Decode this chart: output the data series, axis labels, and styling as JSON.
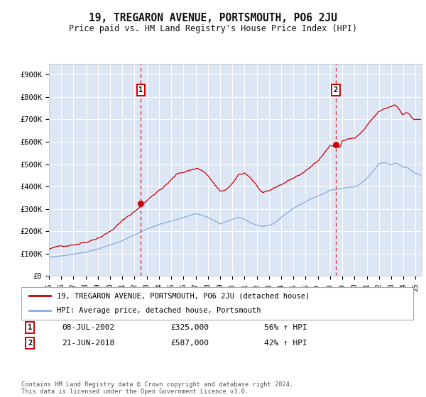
{
  "title": "19, TREGARON AVENUE, PORTSMOUTH, PO6 2JU",
  "subtitle": "Price paid vs. HM Land Registry's House Price Index (HPI)",
  "plot_bg_color": "#dce6f5",
  "ylim": [
    0,
    950000
  ],
  "yticks": [
    0,
    100000,
    200000,
    300000,
    400000,
    500000,
    600000,
    700000,
    800000,
    900000
  ],
  "ytick_labels": [
    "£0",
    "£100K",
    "£200K",
    "£300K",
    "£400K",
    "£500K",
    "£600K",
    "£700K",
    "£800K",
    "£900K"
  ],
  "xlim_start": 1995.0,
  "xlim_end": 2025.5,
  "xticks": [
    1995,
    1996,
    1997,
    1998,
    1999,
    2000,
    2001,
    2002,
    2003,
    2004,
    2005,
    2006,
    2007,
    2008,
    2009,
    2010,
    2011,
    2012,
    2013,
    2014,
    2015,
    2016,
    2017,
    2018,
    2019,
    2020,
    2021,
    2022,
    2023,
    2024,
    2025
  ],
  "sale1_x": 2002.52,
  "sale1_y": 325000,
  "sale1_label": "1",
  "sale1_date": "08-JUL-2002",
  "sale1_price": "£325,000",
  "sale1_hpi": "56% ↑ HPI",
  "sale2_x": 2018.47,
  "sale2_y": 587000,
  "sale2_label": "2",
  "sale2_date": "21-JUN-2018",
  "sale2_price": "£587,000",
  "sale2_hpi": "42% ↑ HPI",
  "line1_color": "#cc0000",
  "line2_color": "#88aadd",
  "line1_label": "19, TREGARON AVENUE, PORTSMOUTH, PO6 2JU (detached house)",
  "line2_label": "HPI: Average price, detached house, Portsmouth",
  "vline_color": "#cc0000",
  "footer": "Contains HM Land Registry data © Crown copyright and database right 2024.\nThis data is licensed under the Open Government Licence v3.0."
}
